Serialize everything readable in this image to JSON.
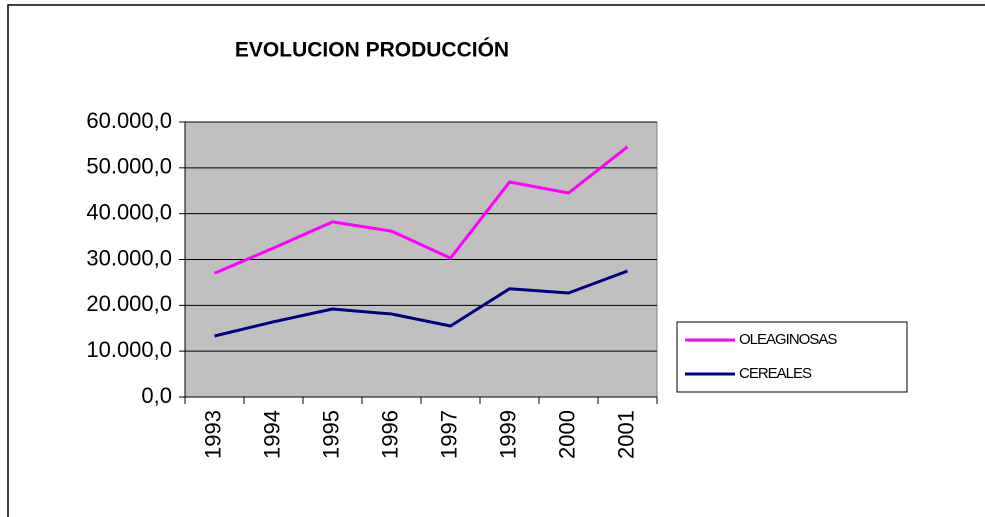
{
  "chart_data": {
    "type": "line",
    "title": "EVOLUCION PRODUCCIÓN",
    "categories": [
      "1993",
      "1994",
      "1995",
      "1996",
      "1997",
      "1999",
      "2000",
      "2001"
    ],
    "series": [
      {
        "name": "OLEAGINOSAS",
        "color": "#ff00ff",
        "values": [
          27000,
          32500,
          38200,
          36200,
          30300,
          46900,
          44500,
          54600
        ]
      },
      {
        "name": "CEREALES",
        "color": "#000080",
        "values": [
          13300,
          16400,
          19200,
          18100,
          15500,
          23600,
          22700,
          27500
        ]
      }
    ],
    "ylim": [
      0,
      60000
    ],
    "yticks": [
      {
        "value": 0,
        "label": "0,0"
      },
      {
        "value": 10000,
        "label": "10.000,0"
      },
      {
        "value": 20000,
        "label": "20.000,0"
      },
      {
        "value": 30000,
        "label": "30.000,0"
      },
      {
        "value": 40000,
        "label": "40.000,0"
      },
      {
        "value": 50000,
        "label": "50.000,0"
      },
      {
        "value": 60000,
        "label": "60.000,0"
      }
    ],
    "grid": true,
    "legend": "right",
    "plot_background": "#c0c0c0"
  }
}
